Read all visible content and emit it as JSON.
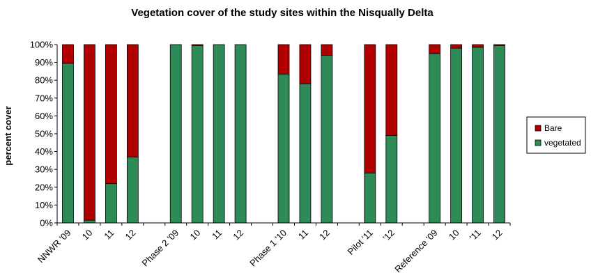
{
  "chart_data": {
    "type": "bar",
    "stacked": true,
    "title": "Vegetation cover of the study sites within the Nisqually Delta",
    "xlabel": "",
    "ylabel": "percent cover",
    "ylim": [
      0,
      100
    ],
    "y_ticks": [
      "0%",
      "10%",
      "20%",
      "30%",
      "40%",
      "50%",
      "60%",
      "70%",
      "80%",
      "90%",
      "100%"
    ],
    "categories": [
      "NNWR '09",
      "10",
      "11",
      "12",
      "",
      "Phase 2 '09",
      "10",
      "11",
      "12",
      "",
      "Phase 1 '10",
      "11",
      "12",
      "",
      "Pilot '11",
      "'12",
      "",
      "Reference '09",
      "10",
      "'11",
      "12"
    ],
    "series": [
      {
        "name": "vegetated",
        "color": "#2e8b57",
        "values": [
          89.5,
          1.5,
          22,
          37,
          null,
          100,
          99.5,
          100,
          100,
          null,
          83.5,
          78,
          94,
          null,
          28,
          49,
          null,
          95,
          98,
          98.5,
          99.5
        ]
      },
      {
        "name": "Bare",
        "color": "#b00000",
        "values": [
          10.5,
          98.5,
          78,
          63,
          null,
          0,
          0.5,
          0,
          0,
          null,
          16.5,
          22,
          6,
          null,
          72,
          51,
          null,
          5,
          2,
          1.5,
          0.5
        ]
      }
    ],
    "legend": {
      "position": "right",
      "entries": [
        "Bare",
        "vegetated"
      ]
    }
  }
}
